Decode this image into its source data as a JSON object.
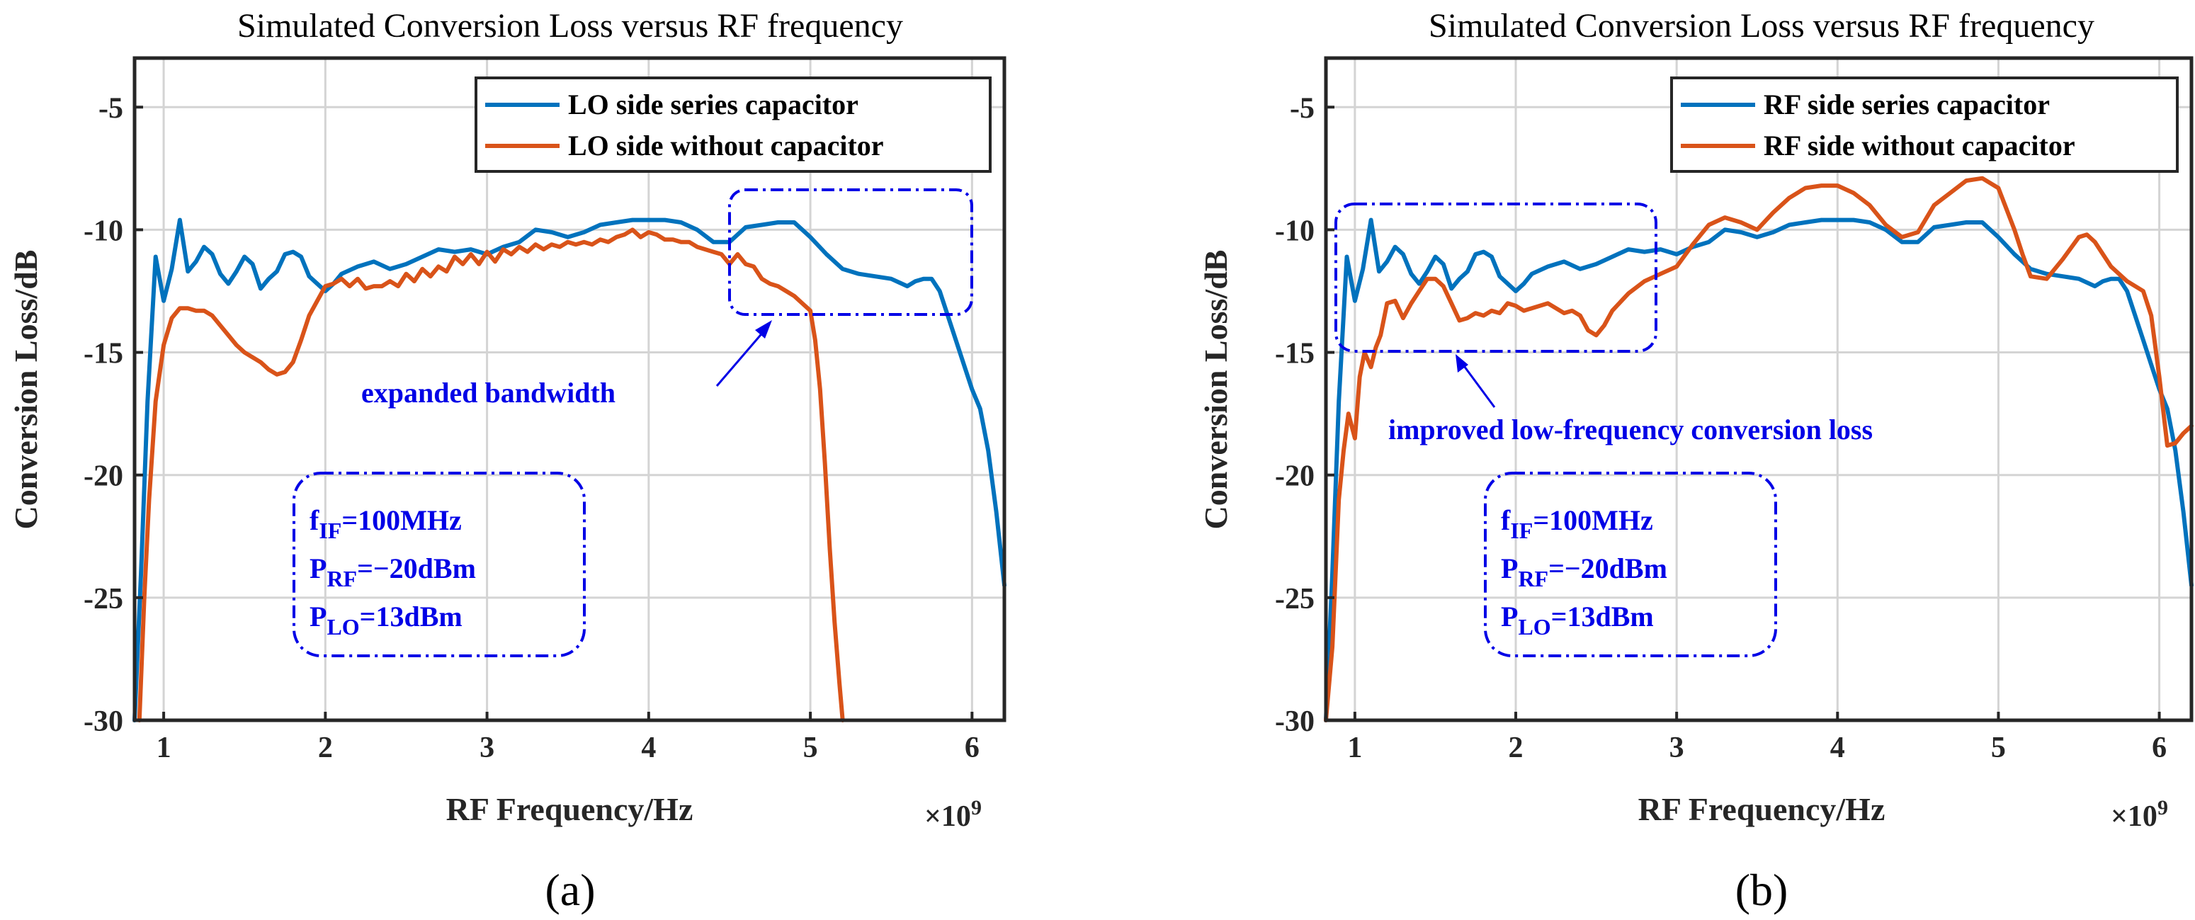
{
  "chart_data": [
    {
      "type": "line",
      "panel_label": "(a)",
      "title": "Simulated Conversion Loss versus RF frequency",
      "xlabel": "RF Frequency/Hz",
      "ylabel": "Conversion Loss/dB",
      "x_multiplier": "×10",
      "x_multiplier_exp": "9",
      "xlim": [
        0.82,
        6.2
      ],
      "ylim": [
        -30,
        -3
      ],
      "xticks": [
        1,
        2,
        3,
        4,
        5,
        6
      ],
      "yticks": [
        -5,
        -10,
        -15,
        -20,
        -25,
        -30
      ],
      "grid": true,
      "legend_position": "top-right",
      "series": [
        {
          "name": "LO side series capacitor",
          "color": "#0072BD",
          "x": [
            0.82,
            0.86,
            0.9,
            0.95,
            1.0,
            1.05,
            1.1,
            1.15,
            1.2,
            1.25,
            1.3,
            1.35,
            1.4,
            1.45,
            1.5,
            1.55,
            1.6,
            1.65,
            1.7,
            1.75,
            1.8,
            1.85,
            1.9,
            1.95,
            2.0,
            2.05,
            2.1,
            2.2,
            2.3,
            2.4,
            2.5,
            2.6,
            2.7,
            2.8,
            2.9,
            3.0,
            3.1,
            3.2,
            3.3,
            3.4,
            3.5,
            3.6,
            3.7,
            3.8,
            3.9,
            4.0,
            4.1,
            4.2,
            4.3,
            4.4,
            4.5,
            4.6,
            4.7,
            4.8,
            4.9,
            5.0,
            5.1,
            5.2,
            5.3,
            5.4,
            5.5,
            5.6,
            5.65,
            5.7,
            5.75,
            5.8,
            5.85,
            5.9,
            5.95,
            6.0,
            6.05,
            6.1,
            6.15,
            6.2
          ],
          "y": [
            -30,
            -24,
            -17,
            -11.1,
            -12.9,
            -11.6,
            -9.6,
            -11.7,
            -11.3,
            -10.7,
            -11.0,
            -11.8,
            -12.2,
            -11.7,
            -11.1,
            -11.4,
            -12.4,
            -12.0,
            -11.7,
            -11.0,
            -10.9,
            -11.1,
            -11.9,
            -12.2,
            -12.5,
            -12.2,
            -11.8,
            -11.5,
            -11.3,
            -11.6,
            -11.4,
            -11.1,
            -10.8,
            -10.9,
            -10.8,
            -11.0,
            -10.7,
            -10.5,
            -10.0,
            -10.1,
            -10.3,
            -10.1,
            -9.8,
            -9.7,
            -9.6,
            -9.6,
            -9.6,
            -9.7,
            -10.0,
            -10.5,
            -10.5,
            -9.9,
            -9.8,
            -9.7,
            -9.7,
            -10.3,
            -11.0,
            -11.6,
            -11.8,
            -11.9,
            -12.0,
            -12.3,
            -12.1,
            -12.0,
            -12.0,
            -12.5,
            -13.5,
            -14.5,
            -15.5,
            -16.5,
            -17.3,
            -19.0,
            -21.5,
            -24.5
          ]
        },
        {
          "name": "LO side without capacitor",
          "color": "#D95319",
          "x": [
            0.85,
            0.88,
            0.91,
            0.95,
            1.0,
            1.05,
            1.1,
            1.15,
            1.2,
            1.25,
            1.3,
            1.35,
            1.4,
            1.45,
            1.5,
            1.55,
            1.6,
            1.65,
            1.7,
            1.75,
            1.8,
            1.85,
            1.9,
            1.95,
            2.0,
            2.05,
            2.1,
            2.15,
            2.2,
            2.25,
            2.3,
            2.35,
            2.4,
            2.45,
            2.5,
            2.55,
            2.6,
            2.65,
            2.7,
            2.75,
            2.8,
            2.85,
            2.9,
            2.95,
            3.0,
            3.05,
            3.1,
            3.15,
            3.2,
            3.25,
            3.3,
            3.35,
            3.4,
            3.45,
            3.5,
            3.55,
            3.6,
            3.65,
            3.7,
            3.75,
            3.8,
            3.85,
            3.9,
            3.95,
            4.0,
            4.05,
            4.1,
            4.15,
            4.2,
            4.25,
            4.3,
            4.35,
            4.4,
            4.45,
            4.5,
            4.55,
            4.6,
            4.65,
            4.7,
            4.75,
            4.8,
            4.85,
            4.9,
            4.95,
            5.0,
            5.03,
            5.06,
            5.09,
            5.12,
            5.15,
            5.18,
            5.2
          ],
          "y": [
            -30,
            -25,
            -21,
            -17,
            -14.7,
            -13.6,
            -13.2,
            -13.2,
            -13.3,
            -13.3,
            -13.5,
            -13.9,
            -14.3,
            -14.7,
            -15.0,
            -15.2,
            -15.4,
            -15.7,
            -15.9,
            -15.8,
            -15.4,
            -14.5,
            -13.5,
            -12.9,
            -12.3,
            -12.2,
            -12.0,
            -12.3,
            -12.0,
            -12.4,
            -12.3,
            -12.3,
            -12.1,
            -12.3,
            -11.8,
            -12.1,
            -11.6,
            -11.9,
            -11.5,
            -11.7,
            -11.1,
            -11.4,
            -11.0,
            -11.4,
            -10.9,
            -11.3,
            -10.8,
            -11.0,
            -10.7,
            -10.9,
            -10.6,
            -10.8,
            -10.6,
            -10.7,
            -10.5,
            -10.6,
            -10.5,
            -10.6,
            -10.4,
            -10.5,
            -10.3,
            -10.2,
            -10.0,
            -10.3,
            -10.1,
            -10.2,
            -10.4,
            -10.4,
            -10.5,
            -10.5,
            -10.7,
            -10.8,
            -10.9,
            -11.0,
            -11.4,
            -11.0,
            -11.4,
            -11.5,
            -12.0,
            -12.2,
            -12.3,
            -12.5,
            -12.7,
            -13.0,
            -13.3,
            -14.5,
            -16.5,
            -19.5,
            -23,
            -26,
            -28.5,
            -30
          ]
        }
      ],
      "annotations": {
        "highlight_text": "expanded bandwidth",
        "params": [
          {
            "sym": "f",
            "sub": "IF",
            "rest": "=100MHz"
          },
          {
            "sym": "P",
            "sub": "RF",
            "rest": "=−20dBm"
          },
          {
            "sym": "P",
            "sub": "LO",
            "rest": "=13dBm"
          }
        ]
      }
    },
    {
      "type": "line",
      "panel_label": "(b)",
      "title": "Simulated Conversion Loss versus RF frequency",
      "xlabel": "RF Frequency/Hz",
      "ylabel": "Conversion Loss/dB",
      "x_multiplier": "×10",
      "x_multiplier_exp": "9",
      "xlim": [
        0.82,
        6.2
      ],
      "ylim": [
        -30,
        -3
      ],
      "xticks": [
        1,
        2,
        3,
        4,
        5,
        6
      ],
      "yticks": [
        -5,
        -10,
        -15,
        -20,
        -25,
        -30
      ],
      "grid": true,
      "legend_position": "top-right",
      "series": [
        {
          "name": "RF side series capacitor",
          "color": "#0072BD",
          "x": [
            0.82,
            0.86,
            0.9,
            0.95,
            1.0,
            1.05,
            1.1,
            1.15,
            1.2,
            1.25,
            1.3,
            1.35,
            1.4,
            1.45,
            1.5,
            1.55,
            1.6,
            1.65,
            1.7,
            1.75,
            1.8,
            1.85,
            1.9,
            1.95,
            2.0,
            2.05,
            2.1,
            2.2,
            2.3,
            2.4,
            2.5,
            2.6,
            2.7,
            2.8,
            2.9,
            3.0,
            3.1,
            3.2,
            3.3,
            3.4,
            3.5,
            3.6,
            3.7,
            3.8,
            3.9,
            4.0,
            4.1,
            4.2,
            4.3,
            4.4,
            4.5,
            4.6,
            4.7,
            4.8,
            4.9,
            5.0,
            5.1,
            5.2,
            5.3,
            5.4,
            5.5,
            5.6,
            5.65,
            5.7,
            5.75,
            5.8,
            5.85,
            5.9,
            5.95,
            6.0,
            6.05,
            6.1,
            6.15,
            6.2
          ],
          "y": [
            -30,
            -24,
            -17,
            -11.1,
            -12.9,
            -11.6,
            -9.6,
            -11.7,
            -11.3,
            -10.7,
            -11.0,
            -11.8,
            -12.2,
            -11.7,
            -11.1,
            -11.4,
            -12.4,
            -12.0,
            -11.7,
            -11.0,
            -10.9,
            -11.1,
            -11.9,
            -12.2,
            -12.5,
            -12.2,
            -11.8,
            -11.5,
            -11.3,
            -11.6,
            -11.4,
            -11.1,
            -10.8,
            -10.9,
            -10.8,
            -11.0,
            -10.7,
            -10.5,
            -10.0,
            -10.1,
            -10.3,
            -10.1,
            -9.8,
            -9.7,
            -9.6,
            -9.6,
            -9.6,
            -9.7,
            -10.0,
            -10.5,
            -10.5,
            -9.9,
            -9.8,
            -9.7,
            -9.7,
            -10.3,
            -11.0,
            -11.6,
            -11.8,
            -11.9,
            -12.0,
            -12.3,
            -12.1,
            -12.0,
            -12.0,
            -12.5,
            -13.5,
            -14.5,
            -15.5,
            -16.5,
            -17.3,
            -19.0,
            -21.5,
            -24.5
          ]
        },
        {
          "name": "RF side without capacitor",
          "color": "#D95319",
          "x": [
            0.82,
            0.86,
            0.9,
            0.93,
            0.96,
            1.0,
            1.03,
            1.06,
            1.1,
            1.13,
            1.16,
            1.2,
            1.25,
            1.3,
            1.35,
            1.4,
            1.45,
            1.5,
            1.55,
            1.6,
            1.65,
            1.7,
            1.75,
            1.8,
            1.85,
            1.9,
            1.95,
            2.0,
            2.05,
            2.1,
            2.15,
            2.2,
            2.25,
            2.3,
            2.35,
            2.4,
            2.45,
            2.5,
            2.55,
            2.6,
            2.7,
            2.8,
            2.9,
            3.0,
            3.1,
            3.2,
            3.3,
            3.4,
            3.5,
            3.6,
            3.7,
            3.8,
            3.9,
            4.0,
            4.1,
            4.2,
            4.3,
            4.4,
            4.5,
            4.6,
            4.7,
            4.8,
            4.9,
            5.0,
            5.1,
            5.15,
            5.2,
            5.3,
            5.4,
            5.5,
            5.55,
            5.6,
            5.7,
            5.8,
            5.9,
            5.95,
            6.0,
            6.05,
            6.1,
            6.15,
            6.2
          ],
          "y": [
            -30,
            -27,
            -21,
            -19,
            -17.5,
            -18.5,
            -16,
            -15.0,
            -15.6,
            -14.8,
            -14.3,
            -13.0,
            -12.9,
            -13.6,
            -13.0,
            -12.5,
            -12.0,
            -12.0,
            -12.3,
            -13.0,
            -13.7,
            -13.6,
            -13.4,
            -13.5,
            -13.3,
            -13.4,
            -13.0,
            -13.1,
            -13.3,
            -13.2,
            -13.1,
            -13.0,
            -13.2,
            -13.4,
            -13.3,
            -13.5,
            -14.1,
            -14.3,
            -13.9,
            -13.3,
            -12.6,
            -12.1,
            -11.8,
            -11.5,
            -10.6,
            -9.8,
            -9.5,
            -9.7,
            -10.0,
            -9.3,
            -8.7,
            -8.3,
            -8.2,
            -8.2,
            -8.5,
            -9.0,
            -9.8,
            -10.3,
            -10.1,
            -9.0,
            -8.5,
            -8.0,
            -7.9,
            -8.3,
            -10.0,
            -11.0,
            -11.9,
            -12.0,
            -11.2,
            -10.3,
            -10.2,
            -10.5,
            -11.5,
            -12.1,
            -12.5,
            -13.5,
            -16,
            -18.8,
            -18.7,
            -18.3,
            -18.0
          ]
        }
      ],
      "annotations": {
        "highlight_text": "improved low-frequency conversion loss",
        "params": [
          {
            "sym": "f",
            "sub": "IF",
            "rest": "=100MHz"
          },
          {
            "sym": "P",
            "sub": "RF",
            "rest": "=−20dBm"
          },
          {
            "sym": "P",
            "sub": "LO",
            "rest": "=13dBm"
          }
        ]
      }
    }
  ]
}
